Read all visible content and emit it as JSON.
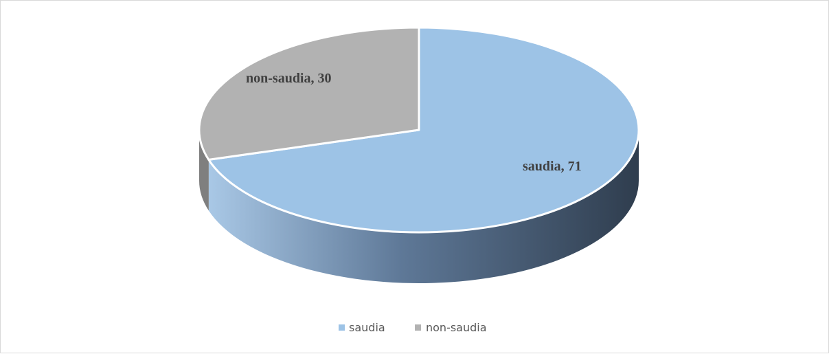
{
  "chart_data": {
    "type": "pie",
    "style": "3d",
    "title": "",
    "slices": [
      {
        "name": "saudia",
        "value": 71,
        "label": "saudia, 71",
        "color": "#9DC3E6"
      },
      {
        "name": "non-saudia",
        "value": 30,
        "label": "non-saudia, 30",
        "color": "#B2B2B2"
      }
    ],
    "legend": {
      "position": "bottom",
      "entries": [
        "saudia",
        "non-saudia"
      ]
    },
    "side_colors": {
      "saudia": "#44546A",
      "non-saudia": "#7F7F7F"
    }
  }
}
